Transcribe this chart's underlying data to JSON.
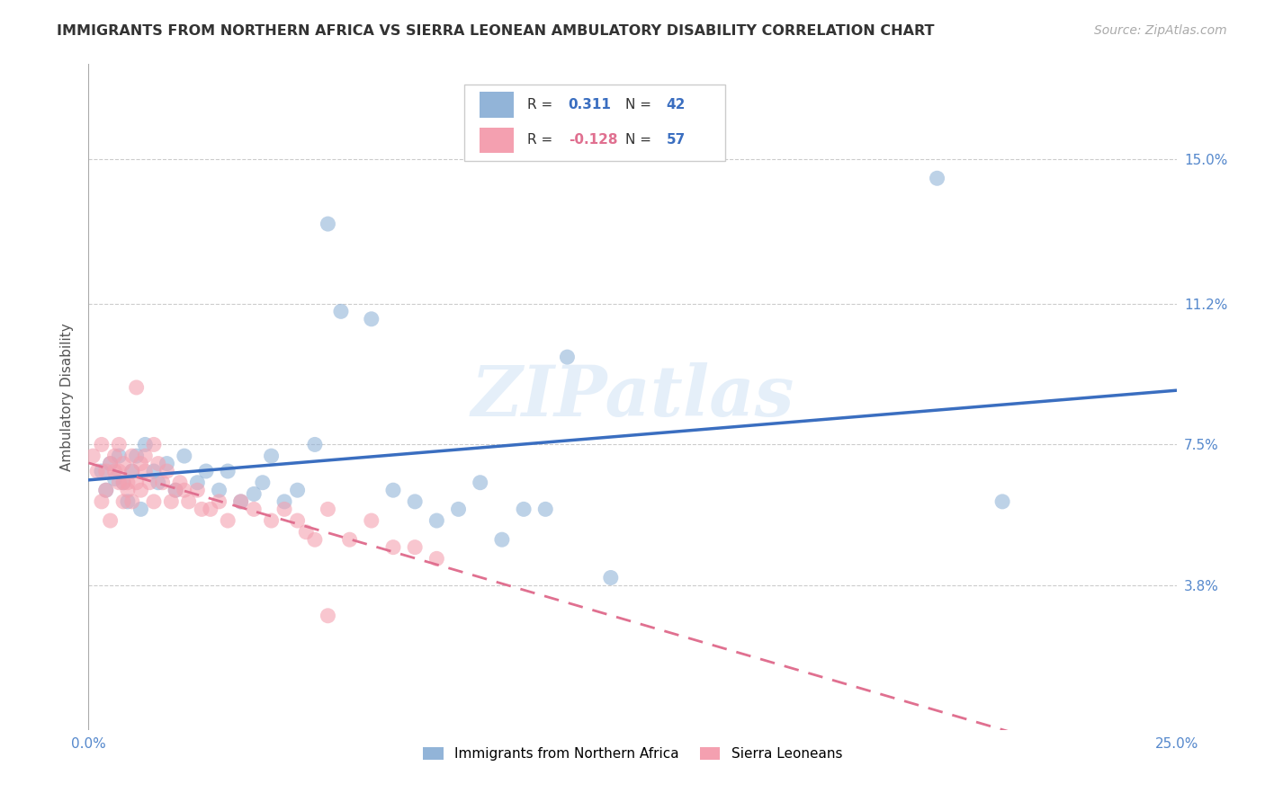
{
  "title": "IMMIGRANTS FROM NORTHERN AFRICA VS SIERRA LEONEAN AMBULATORY DISABILITY CORRELATION CHART",
  "source": "Source: ZipAtlas.com",
  "ylabel": "Ambulatory Disability",
  "yticks_labels": [
    "15.0%",
    "11.2%",
    "7.5%",
    "3.8%"
  ],
  "yticks_vals": [
    0.15,
    0.112,
    0.075,
    0.038
  ],
  "xlim": [
    0.0,
    0.25
  ],
  "ylim": [
    0.0,
    0.175
  ],
  "blue_color": "#92B4D8",
  "pink_color": "#F4A0B0",
  "blue_line_color": "#3A6EC0",
  "pink_line_color": "#E07090",
  "tick_color": "#5588CC",
  "legend_label_blue": "Immigrants from Northern Africa",
  "legend_label_pink": "Sierra Leoneans",
  "watermark": "ZIPatlas",
  "blue_r_text": "0.311",
  "blue_n_text": "42",
  "pink_r_text": "-0.128",
  "pink_n_text": "57",
  "blue_x": [
    0.003,
    0.004,
    0.005,
    0.006,
    0.007,
    0.008,
    0.009,
    0.01,
    0.011,
    0.012,
    0.013,
    0.015,
    0.016,
    0.018,
    0.02,
    0.022,
    0.025,
    0.027,
    0.03,
    0.032,
    0.035,
    0.038,
    0.04,
    0.042,
    0.045,
    0.048,
    0.052,
    0.055,
    0.058,
    0.065,
    0.07,
    0.075,
    0.08,
    0.085,
    0.09,
    0.095,
    0.1,
    0.105,
    0.11,
    0.12,
    0.195,
    0.21
  ],
  "blue_y": [
    0.068,
    0.063,
    0.07,
    0.066,
    0.072,
    0.065,
    0.06,
    0.068,
    0.072,
    0.058,
    0.075,
    0.068,
    0.065,
    0.07,
    0.063,
    0.072,
    0.065,
    0.068,
    0.063,
    0.068,
    0.06,
    0.062,
    0.065,
    0.072,
    0.06,
    0.063,
    0.075,
    0.133,
    0.11,
    0.108,
    0.063,
    0.06,
    0.055,
    0.058,
    0.065,
    0.05,
    0.058,
    0.058,
    0.098,
    0.04,
    0.145,
    0.06
  ],
  "pink_x": [
    0.001,
    0.002,
    0.003,
    0.003,
    0.004,
    0.004,
    0.005,
    0.005,
    0.006,
    0.006,
    0.007,
    0.007,
    0.007,
    0.008,
    0.008,
    0.008,
    0.009,
    0.009,
    0.01,
    0.01,
    0.01,
    0.011,
    0.011,
    0.012,
    0.012,
    0.013,
    0.013,
    0.014,
    0.015,
    0.015,
    0.016,
    0.017,
    0.018,
    0.019,
    0.02,
    0.021,
    0.022,
    0.023,
    0.025,
    0.026,
    0.028,
    0.03,
    0.032,
    0.035,
    0.038,
    0.042,
    0.045,
    0.048,
    0.05,
    0.052,
    0.055,
    0.06,
    0.065,
    0.07,
    0.075,
    0.08,
    0.055
  ],
  "pink_y": [
    0.072,
    0.068,
    0.06,
    0.075,
    0.068,
    0.063,
    0.07,
    0.055,
    0.072,
    0.068,
    0.065,
    0.068,
    0.075,
    0.06,
    0.065,
    0.07,
    0.065,
    0.063,
    0.068,
    0.072,
    0.06,
    0.09,
    0.065,
    0.063,
    0.07,
    0.068,
    0.072,
    0.065,
    0.075,
    0.06,
    0.07,
    0.065,
    0.068,
    0.06,
    0.063,
    0.065,
    0.063,
    0.06,
    0.063,
    0.058,
    0.058,
    0.06,
    0.055,
    0.06,
    0.058,
    0.055,
    0.058,
    0.055,
    0.052,
    0.05,
    0.058,
    0.05,
    0.055,
    0.048,
    0.048,
    0.045,
    0.03
  ]
}
